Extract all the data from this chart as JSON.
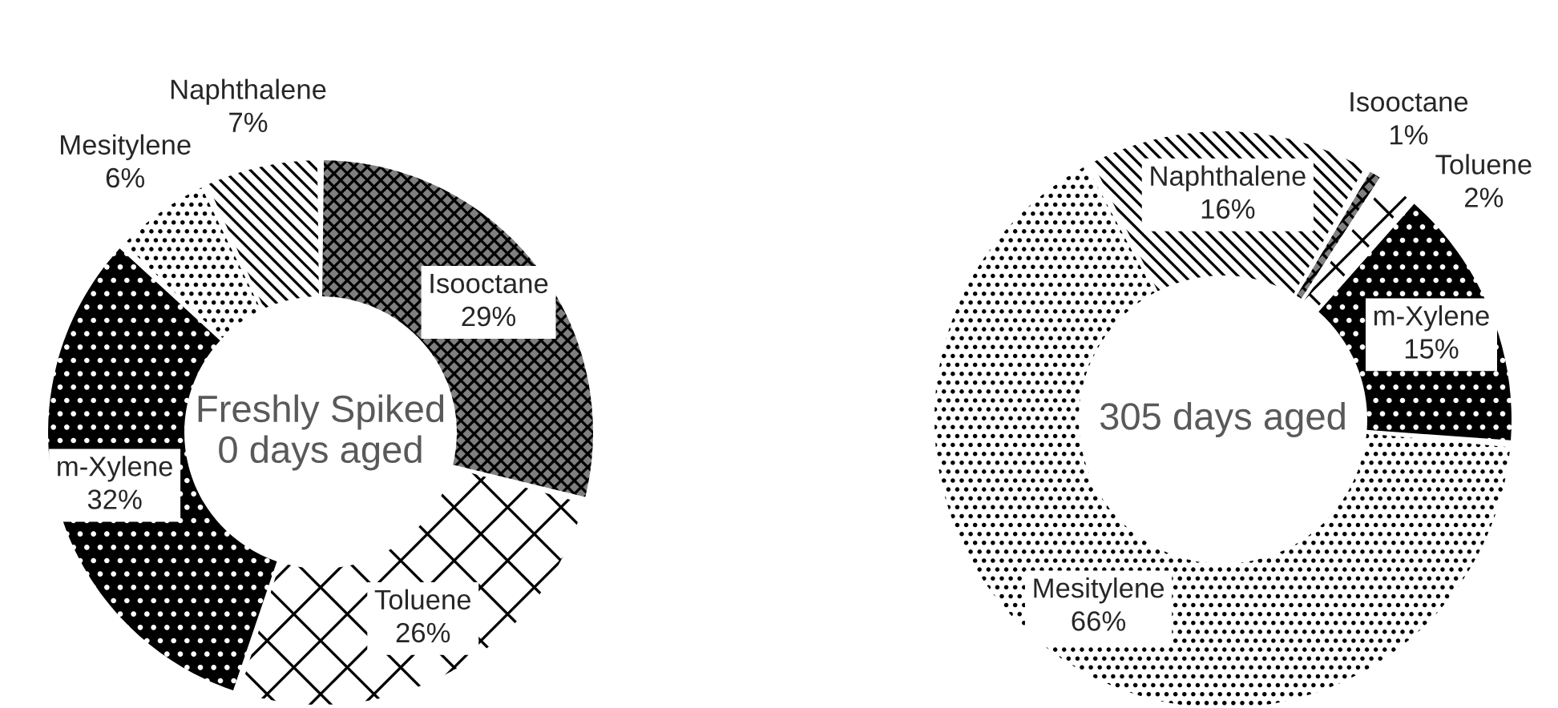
{
  "chart_data": [
    {
      "type": "donut",
      "title": "Freshly Spiked\n0 days aged",
      "categories": [
        "Isooctane",
        "Toluene",
        "m-Xylene",
        "Mesitylene",
        "Naphthalene"
      ],
      "values": [
        29,
        26,
        32,
        6,
        7
      ],
      "value_labels": [
        "29%",
        "26%",
        "32%",
        "6%",
        "7%"
      ],
      "colors": [
        "#7f7f7f",
        "#ffffff",
        "#000000",
        "#ffffff",
        "#ffffff"
      ]
    },
    {
      "type": "donut",
      "title": "305 days aged",
      "categories": [
        "Isooctane",
        "Toluene",
        "m-Xylene",
        "Mesitylene",
        "Naphthalene"
      ],
      "values": [
        1,
        2,
        15,
        66,
        16
      ],
      "value_labels": [
        "1%",
        "2%",
        "15%",
        "66%",
        "16%"
      ],
      "colors": [
        "#7f7f7f",
        "#ffffff",
        "#000000",
        "#ffffff",
        "#ffffff"
      ]
    }
  ]
}
